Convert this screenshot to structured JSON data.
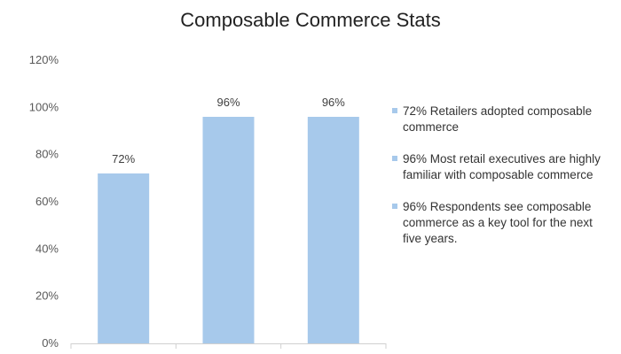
{
  "colors": {
    "bar": "#A7C9EB",
    "axis": "#d0d0d0"
  },
  "chart_data": {
    "type": "bar",
    "title": "Composable Commerce Stats",
    "categories": [
      "",
      "",
      ""
    ],
    "values": [
      72,
      96,
      96
    ],
    "data_labels": [
      "72%",
      "96%",
      "96%"
    ],
    "ylim": [
      0,
      120
    ],
    "yticks": [
      0,
      20,
      40,
      60,
      80,
      100,
      120
    ],
    "ytick_labels": [
      "0%",
      "20%",
      "40%",
      "60%",
      "80%",
      "100%",
      "120%"
    ],
    "grid": false,
    "legend_position": "right",
    "legend": [
      "72% Retailers adopted composable commerce",
      "96% Most retail executives are highly familiar with composable commerce",
      "96% Respondents see composable commerce as a key tool for the next five years."
    ]
  }
}
